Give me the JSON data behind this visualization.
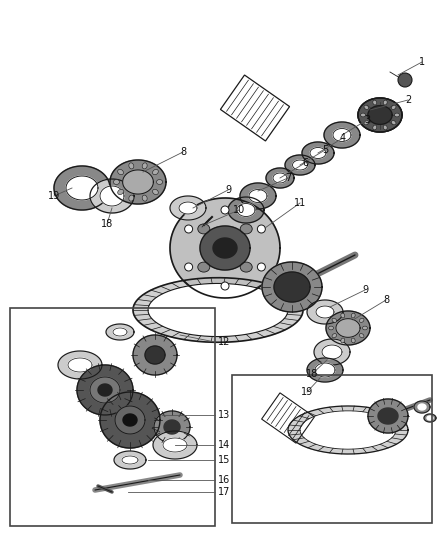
{
  "bg_color": "#ffffff",
  "fig_width": 4.38,
  "fig_height": 5.33,
  "dpi": 100,
  "lc": "#1a1a1a",
  "fc_dark": "#555555",
  "fc_mid": "#888888",
  "fc_light": "#cccccc",
  "label_fs": 7.0,
  "label_color": "#111111"
}
